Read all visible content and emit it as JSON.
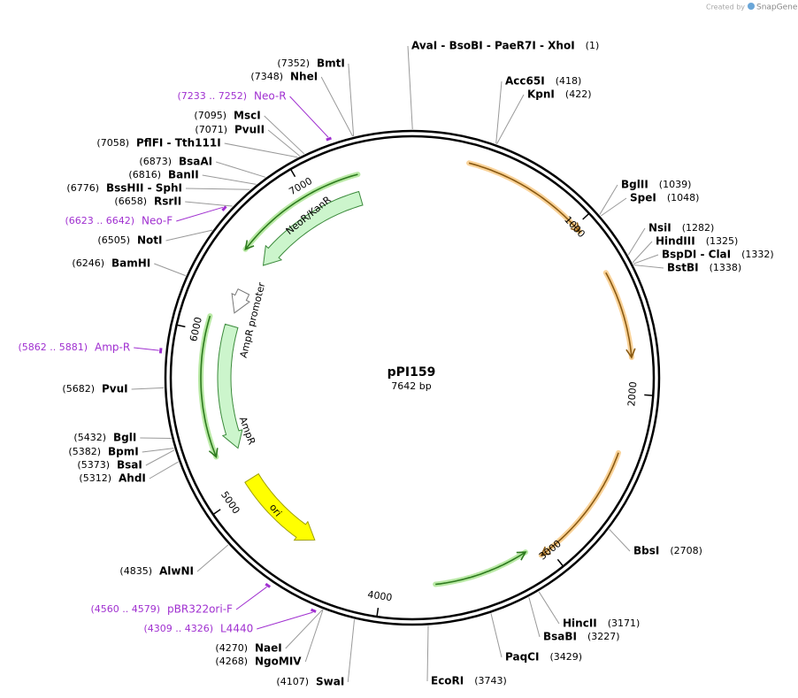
{
  "watermark": {
    "prefix": "Created by",
    "brand": "SnapGene"
  },
  "plasmid": {
    "name": "pPI159",
    "length": "7642 bp"
  },
  "ticks": [
    1000,
    2000,
    3000,
    4000,
    5000,
    6000,
    7000
  ],
  "sites": [
    {
      "name": "AvaI  - BsoBI  - PaeR7I  - XhoI",
      "position": "(1)"
    },
    {
      "name": "Acc65I",
      "position": "(418)"
    },
    {
      "name": "KpnI",
      "position": "(422)"
    },
    {
      "name": "BglII",
      "position": "(1039)"
    },
    {
      "name": "SpeI",
      "position": "(1048)"
    },
    {
      "name": "NsiI",
      "position": "(1282)"
    },
    {
      "name": "HindIII",
      "position": "(1325)"
    },
    {
      "name": "BspDI  - ClaI",
      "position": "(1332)"
    },
    {
      "name": "BstBI",
      "position": "(1338)"
    },
    {
      "name": "BbsI",
      "position": "(2708)"
    },
    {
      "name": "HincII",
      "position": "(3171)"
    },
    {
      "name": "BsaBI",
      "position": "(3227)"
    },
    {
      "name": "PaqCI",
      "position": "(3429)"
    },
    {
      "name": "EcoRI",
      "position": "(3743)"
    },
    {
      "name": "SwaI",
      "position": "(4107)"
    },
    {
      "name": "NgoMIV",
      "position": "(4268)"
    },
    {
      "name": "NaeI",
      "position": "(4270)"
    },
    {
      "name": "AlwNI",
      "position": "(4835)"
    },
    {
      "name": "AhdI",
      "position": "(5312)"
    },
    {
      "name": "BsaI",
      "position": "(5373)"
    },
    {
      "name": "BpmI",
      "position": "(5382)"
    },
    {
      "name": "BglI",
      "position": "(5432)"
    },
    {
      "name": "PvuI",
      "position": "(5682)"
    },
    {
      "name": "BamHI",
      "position": "(6246)"
    },
    {
      "name": "NotI",
      "position": "(6505)"
    },
    {
      "name": "RsrII",
      "position": "(6658)"
    },
    {
      "name": "BssHII  - SphI",
      "position": "(6776)"
    },
    {
      "name": "BanII",
      "position": "(6816)"
    },
    {
      "name": "BsaAI",
      "position": "(6873)"
    },
    {
      "name": "PflFI  - Tth111I",
      "position": "(7058)"
    },
    {
      "name": "PvuII",
      "position": "(7071)"
    },
    {
      "name": "MscI",
      "position": "(7095)"
    },
    {
      "name": "NheI",
      "position": "(7348)"
    },
    {
      "name": "BmtI",
      "position": "(7352)"
    }
  ],
  "primers": [
    {
      "name": "Neo-R",
      "position": "(7233 .. 7252)"
    },
    {
      "name": "Neo-F",
      "position": "(6623 .. 6642)"
    },
    {
      "name": "Amp-R",
      "position": "(5862 .. 5881)"
    },
    {
      "name": "pBR322ori-F",
      "position": "(4560 .. 4579)"
    },
    {
      "name": "L4440",
      "position": "(4309 .. 4326)"
    }
  ],
  "features": [
    {
      "label": "NeoR/KanR"
    },
    {
      "label": "AmpR promoter"
    },
    {
      "label": "AmpR"
    },
    {
      "label": "ori"
    }
  ]
}
